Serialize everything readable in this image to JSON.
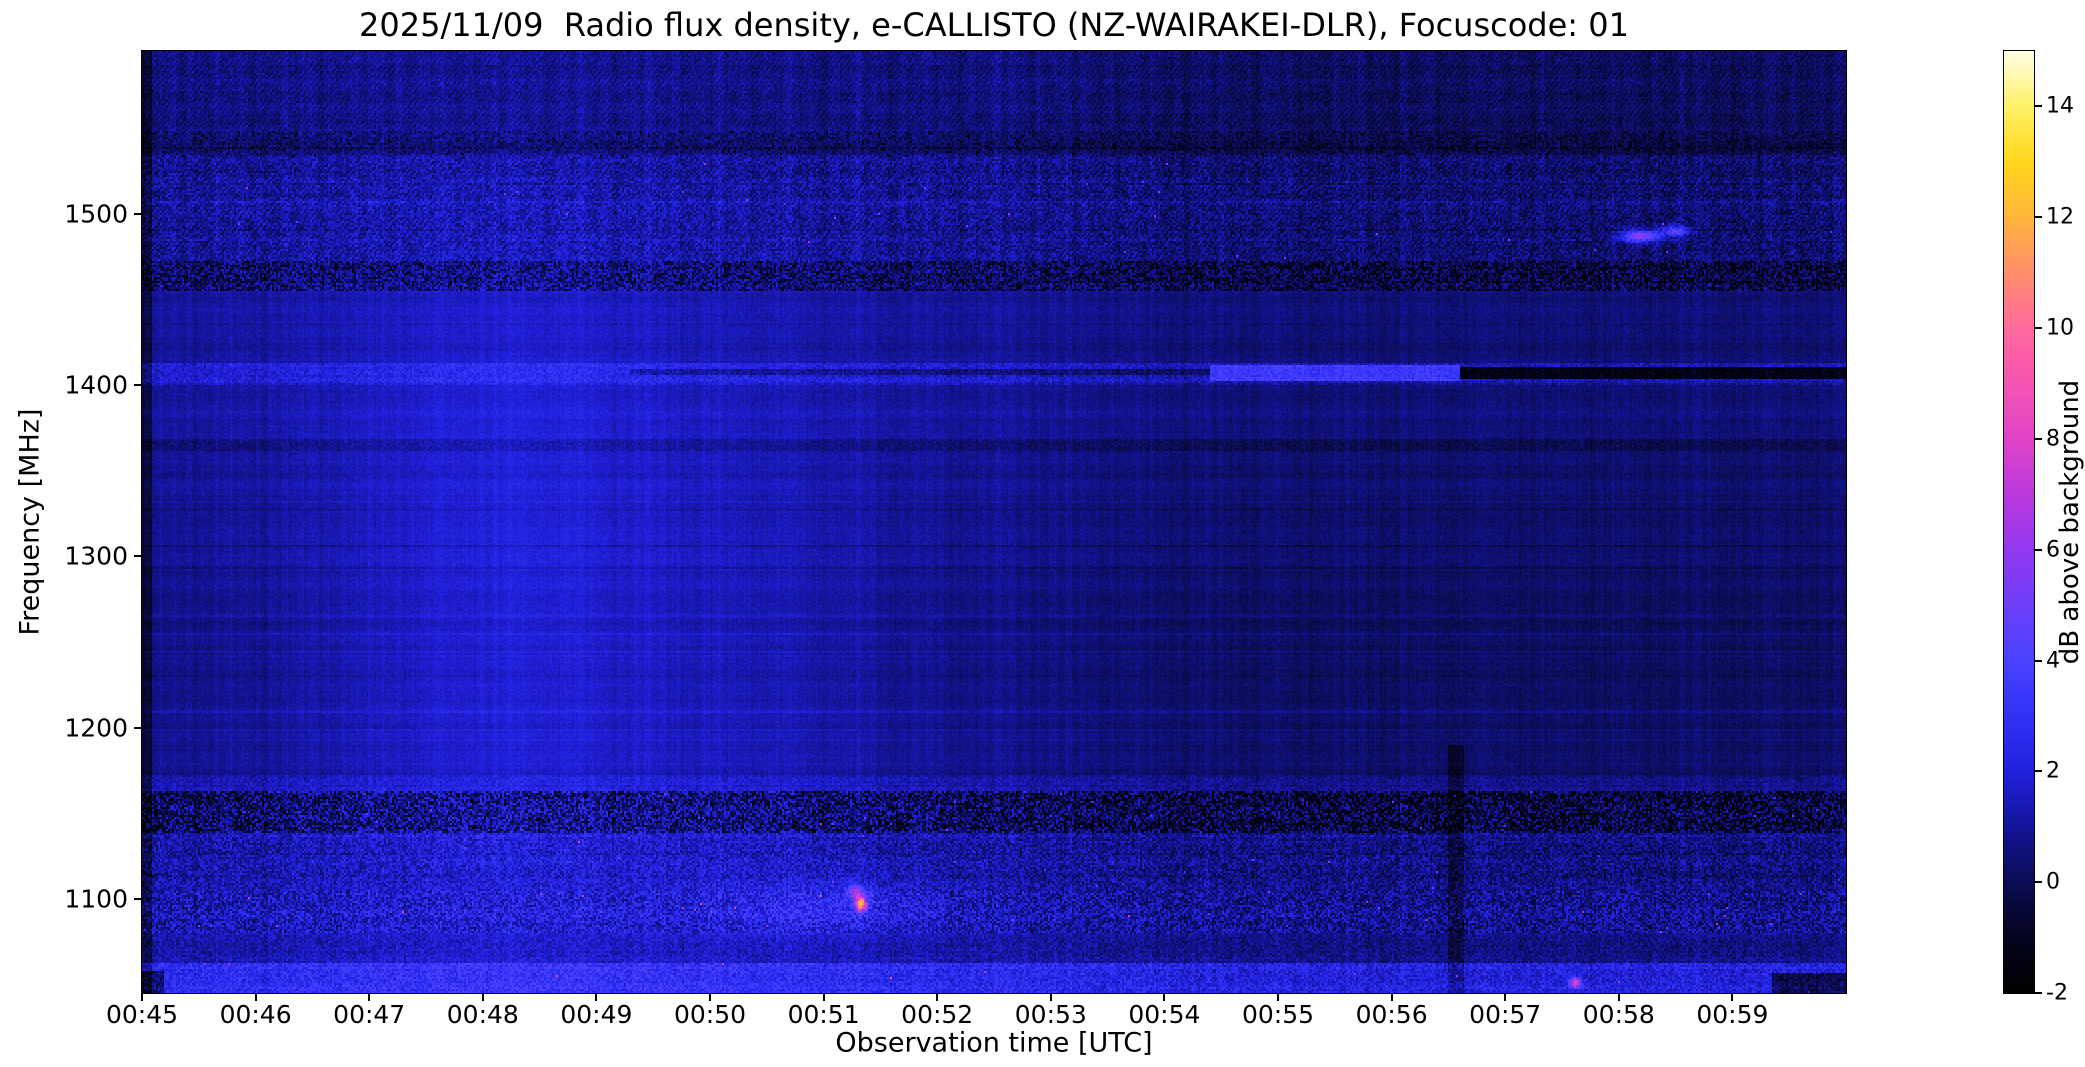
{
  "chart_data": {
    "type": "heatmap",
    "title": "2025/11/09  Radio flux density, e-CALLISTO (NZ-WAIRAKEI-DLR), Focuscode: 01",
    "xlabel": "Observation time [UTC]",
    "ylabel": "Frequency [MHz]",
    "x_ticks": [
      "00:45",
      "00:46",
      "00:47",
      "00:48",
      "00:49",
      "00:50",
      "00:51",
      "00:52",
      "00:53",
      "00:54",
      "00:55",
      "00:56",
      "00:57",
      "00:58",
      "00:59"
    ],
    "x_range_minutes": [
      45,
      60
    ],
    "y_ticks": [
      "1100",
      "1200",
      "1300",
      "1400",
      "1500"
    ],
    "y_range_mhz": [
      1045,
      1595
    ],
    "grid": false,
    "legend": "colorbar-right",
    "colorbar": {
      "label": "dB above background",
      "ticks": [
        "-2",
        "0",
        "2",
        "4",
        "6",
        "8",
        "10",
        "12",
        "14"
      ],
      "range": [
        -2,
        15
      ],
      "colormap_stops": [
        {
          "v": -2.0,
          "c": "#000000"
        },
        {
          "v": -1.0,
          "c": "#04041f"
        },
        {
          "v": 0.0,
          "c": "#0c0c55"
        },
        {
          "v": 1.0,
          "c": "#14149b"
        },
        {
          "v": 2.0,
          "c": "#2121dd"
        },
        {
          "v": 3.0,
          "c": "#3232f5"
        },
        {
          "v": 4.0,
          "c": "#4a42ff"
        },
        {
          "v": 5.0,
          "c": "#6e3ef8"
        },
        {
          "v": 6.0,
          "c": "#9338ee"
        },
        {
          "v": 7.0,
          "c": "#bc39dd"
        },
        {
          "v": 8.0,
          "c": "#e144c6"
        },
        {
          "v": 9.0,
          "c": "#f455b2"
        },
        {
          "v": 10.0,
          "c": "#ff6b9d"
        },
        {
          "v": 11.0,
          "c": "#ff8f6b"
        },
        {
          "v": 12.0,
          "c": "#ffb53c"
        },
        {
          "v": 13.0,
          "c": "#ffd71c"
        },
        {
          "v": 14.0,
          "c": "#fff16a"
        },
        {
          "v": 15.0,
          "c": "#ffffe8"
        }
      ]
    },
    "background_db": {
      "typical_left_half": 1.1,
      "typical_right_half": 0.55,
      "description": "Quiet spectrogram, mostly 0-2 dB above background (dark blue to blue); no solar burst, horizontal RFI lanes dominate."
    },
    "features": {
      "time_step": {
        "t": 53.65,
        "width": 0.45,
        "delta": -0.5,
        "description": "left half slightly brighter than right half"
      },
      "blobs": [
        {
          "t": 48.3,
          "ts": 1.25,
          "f": 1270,
          "fs": 185,
          "amp": 1.25,
          "description": "broad faint blue enhancement 00:47-00:49"
        },
        {
          "t": 50.7,
          "ts": 0.8,
          "f": 1240,
          "fs": 150,
          "amp": 0.45,
          "description": "weaker enhancement near 00:50-00:51"
        },
        {
          "t": 51.0,
          "ts": 0.7,
          "f": 1095,
          "fs": 12,
          "amp": 1.2,
          "description": "bright specks cluster ~00:50-00:52 near 1095 MHz"
        }
      ],
      "bands": [
        {
          "f": [
            1548,
            1595
          ],
          "base": -0.2,
          "noise": 0.45,
          "tex": true,
          "description": "dark finely striped band at top"
        },
        {
          "f": [
            1533,
            1548
          ],
          "base": -0.5,
          "noise": 0.7,
          "dark_p": 0.05,
          "description": "darker RFI lane ~1540 MHz"
        },
        {
          "f": [
            1472,
            1533
          ],
          "base": -0.05,
          "noise": 0.85,
          "tex": true,
          "bright_p": 0.0008,
          "bright_amp": 4,
          "description": "speckled GNSS RFI band"
        },
        {
          "f": [
            1455,
            1472
          ],
          "base": -0.7,
          "noise": 1.3,
          "dark_p": 0.15,
          "description": "dark mottled RFI band ~1460 MHz"
        },
        {
          "f": [
            1400,
            1413
          ],
          "base": 0.9,
          "noise": 0.6,
          "description": "bright lane ~1405-1410 MHz across full record"
        },
        {
          "f": [
            1362,
            1368
          ],
          "base": -0.55,
          "noise": 0.35,
          "description": "thin dark line ~1365 MHz"
        },
        {
          "f": [
            1163,
            1172
          ],
          "base": 0.45,
          "noise": 0.5,
          "description": "slightly brighter lane ~1167 MHz"
        },
        {
          "f": [
            1138,
            1163
          ],
          "base": -0.55,
          "noise": 1.7,
          "dark_p": 0.2,
          "bright_p": 0.003,
          "bright_amp": 3.5,
          "description": "strong black/blue mottled RFI band"
        },
        {
          "f": [
            1105,
            1138
          ],
          "base": 0.15,
          "noise": 1.0,
          "bright_p": 0.001,
          "bright_amp": 3,
          "description": "noisy band"
        },
        {
          "f": [
            1080,
            1105
          ],
          "base": 0.35,
          "noise": 1.35,
          "bright_p": 0.0025,
          "bright_amp": 4,
          "description": "noisy band with bright specks ~1090-1100 MHz"
        },
        {
          "f": [
            1062,
            1080
          ],
          "base": 0.25,
          "noise": 0.65,
          "description": "plain band"
        },
        {
          "f": [
            1045,
            1062
          ],
          "base": 1.55,
          "noise": 0.9,
          "bright_p": 0.001,
          "bright_amp": 4.5,
          "description": "bright blue band along bottom edge"
        }
      ],
      "rects": [
        {
          "t": [
            54.4,
            56.6
          ],
          "f": [
            1402,
            1412
          ],
          "delta": 2.1,
          "description": "bright blue segment 00:54.4-00:56.6 at ~1407 MHz"
        },
        {
          "t": [
            56.6,
            60.0
          ],
          "f": [
            1403,
            1411
          ],
          "delta": -2.6,
          "description": "black line after 00:56.6 at ~1407 MHz"
        },
        {
          "t": [
            49.3,
            54.4
          ],
          "f": [
            1406,
            1409
          ],
          "delta": -1.2,
          "description": "thin dark line 00:49-00:54 at ~1407 MHz"
        },
        {
          "t": [
            56.5,
            56.63
          ],
          "f": [
            1045,
            1190
          ],
          "delta": -1.0,
          "description": "dark vertical notch at 00:56.5, low frequencies"
        },
        {
          "t": [
            45.0,
            45.08
          ],
          "f": [
            1045,
            1595
          ],
          "delta": -1.4,
          "description": "dark first column"
        },
        {
          "t": [
            45.0,
            45.2
          ],
          "f": [
            1045,
            1058
          ],
          "delta": -2.2,
          "description": "black notch bottom-left"
        },
        {
          "t": [
            59.35,
            60.0
          ],
          "f": [
            1045,
            1057
          ],
          "delta": -2.2,
          "description": "black notch bottom-right"
        }
      ],
      "spots": [
        {
          "t": 51.33,
          "f": 1097,
          "amp": 9.5,
          "tr": 0.035,
          "fr": 3.0,
          "description": "red/pink point at 00:51:20, ~1097 MHz"
        },
        {
          "t": 51.28,
          "f": 1104,
          "amp": 4.0,
          "tr": 0.05,
          "fr": 3.0,
          "description": "violet companion speck"
        },
        {
          "t": 58.2,
          "f": 1487,
          "amp": 5.5,
          "tr": 0.12,
          "fr": 2.5,
          "description": "pink RFI patch near 00:58, ~1487 MHz"
        },
        {
          "t": 58.5,
          "f": 1490,
          "amp": 4.0,
          "tr": 0.08,
          "fr": 2.2,
          "description": "second pink speck"
        },
        {
          "t": 57.62,
          "f": 1051,
          "amp": 6.5,
          "tr": 0.035,
          "fr": 2.0,
          "description": "pink speck at bottom edge near 00:57.6"
        }
      ]
    }
  }
}
